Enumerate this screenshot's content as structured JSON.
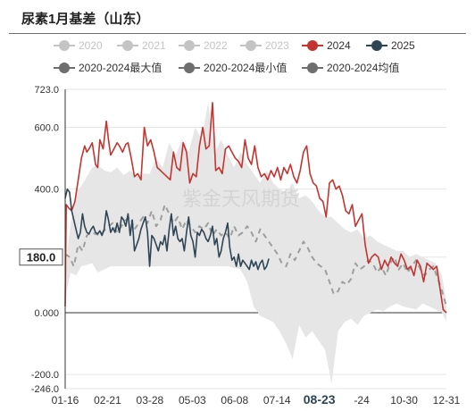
{
  "title": "尿素1月基差（山东）",
  "watermark": "紫金天风期货",
  "legend": {
    "row1": [
      {
        "label": "2020",
        "color": "#c4c4c4",
        "active": false
      },
      {
        "label": "2021",
        "color": "#c4c4c4",
        "active": false
      },
      {
        "label": "2022",
        "color": "#c4c4c4",
        "active": false
      },
      {
        "label": "2023",
        "color": "#c4c4c4",
        "active": false
      },
      {
        "label": "2024",
        "color": "#c23531",
        "active": true
      },
      {
        "label": "2025",
        "color": "#2f4554",
        "active": true
      }
    ],
    "row2": [
      {
        "label": "2020-2024最大值",
        "color": "#6e6e6e",
        "active": true
      },
      {
        "label": "2020-2024最小值",
        "color": "#6e6e6e",
        "active": true
      },
      {
        "label": "2020-2024均值",
        "color": "#6e6e6e",
        "active": true
      }
    ]
  },
  "chart_data": {
    "type": "line",
    "title": "尿素1月基差（山东）",
    "x_labels": [
      "01-16",
      "02-21",
      "03-28",
      "05-03",
      "06-08",
      "07-14",
      "08-23",
      "09-24",
      "10-30",
      "12-31"
    ],
    "x_labels_display": [
      "01-16",
      "02-21",
      "03-28",
      "05-03",
      "06-08",
      "07-14",
      "08-23",
      "-24",
      "10-30",
      "12-31"
    ],
    "highlight_x_label": "08-23",
    "y_ticks": [
      723,
      600,
      400,
      180,
      0,
      -200,
      -246
    ],
    "y_tick_labels": [
      "723.0",
      "600.0",
      "400.0",
      "180.0",
      "0.000",
      "-200.0",
      "-246.0"
    ],
    "highlight_y": "180.0",
    "ylim": [
      -246,
      723
    ],
    "grid": true,
    "legend_position": "top",
    "band": {
      "name_max": "2020-2024最大值",
      "name_min": "2020-2024最小值",
      "color": "#e6e6e6",
      "x": [
        0,
        2,
        5,
        10,
        15,
        20,
        25,
        30,
        36,
        42,
        48,
        54,
        60,
        66,
        72,
        78,
        84,
        90,
        96,
        102,
        108,
        114,
        120,
        126,
        132,
        138,
        144,
        150,
        156,
        162,
        168,
        174,
        180,
        186,
        192,
        198,
        204,
        210,
        216,
        222,
        228,
        234,
        240,
        246,
        252,
        258,
        264,
        270,
        276,
        282,
        288,
        294,
        300,
        306,
        312,
        318,
        324,
        330,
        336,
        342,
        348,
        352
      ],
      "max": [
        60,
        200,
        290,
        390,
        410,
        440,
        470,
        480,
        460,
        455,
        470,
        445,
        460,
        440,
        450,
        450,
        500,
        470,
        550,
        510,
        560,
        520,
        600,
        560,
        680,
        520,
        560,
        510,
        470,
        520,
        480,
        450,
        420,
        460,
        420,
        400,
        390,
        420,
        370,
        380,
        360,
        330,
        310,
        310,
        290,
        270,
        260,
        270,
        240,
        250,
        230,
        220,
        210,
        200,
        200,
        180,
        190,
        180,
        170,
        160,
        120,
        30
      ],
      "min": [
        10,
        80,
        130,
        120,
        150,
        155,
        160,
        130,
        140,
        150,
        150,
        150,
        150,
        150,
        150,
        150,
        150,
        150,
        150,
        150,
        150,
        150,
        150,
        150,
        150,
        150,
        150,
        150,
        145,
        140,
        100,
        20,
        -10,
        -20,
        -30,
        -60,
        -100,
        -150,
        -40,
        -80,
        -60,
        -90,
        -120,
        -230,
        -60,
        -30,
        -20,
        -40,
        -10,
        0,
        10,
        5,
        20,
        30,
        20,
        15,
        10,
        30,
        20,
        10,
        0,
        -30
      ]
    },
    "series": [
      {
        "name": "2024",
        "color": "#c23531",
        "style": "solid",
        "x": [
          0,
          1,
          3,
          6,
          9,
          12,
          15,
          18,
          20,
          22,
          25,
          28,
          30,
          32,
          35,
          38,
          40,
          42,
          45,
          48,
          50,
          53,
          56,
          58,
          61,
          64,
          67,
          70,
          73,
          76,
          79,
          82,
          85,
          88,
          91,
          94,
          97,
          100,
          103,
          106,
          109,
          112,
          115,
          118,
          121,
          124,
          127,
          130,
          133,
          136,
          139,
          142,
          145,
          148,
          151,
          154,
          157,
          160,
          163,
          166,
          169,
          172,
          175,
          178,
          181,
          184,
          187,
          190,
          193,
          196,
          199,
          202,
          205,
          208,
          211,
          214,
          217,
          220,
          223,
          226,
          229,
          232,
          235,
          238,
          241,
          244,
          247,
          250,
          253,
          256,
          259,
          262,
          265,
          268,
          271,
          274,
          277,
          280,
          283,
          286,
          289,
          292,
          295,
          298,
          301,
          304,
          307,
          310,
          313,
          316,
          319,
          322,
          325,
          328,
          331,
          334,
          337,
          340,
          343,
          346,
          349,
          352
        ],
        "y": [
          20,
          350,
          340,
          330,
          360,
          430,
          500,
          540,
          520,
          530,
          550,
          480,
          470,
          560,
          530,
          620,
          560,
          510,
          530,
          550,
          540,
          520,
          545,
          550,
          500,
          440,
          450,
          430,
          600,
          540,
          560,
          520,
          470,
          460,
          450,
          440,
          430,
          520,
          470,
          460,
          550,
          520,
          420,
          450,
          440,
          540,
          600,
          530,
          540,
          680,
          460,
          470,
          450,
          530,
          540,
          520,
          500,
          490,
          470,
          560,
          500,
          480,
          540,
          470,
          440,
          450,
          430,
          460,
          440,
          470,
          430,
          470,
          450,
          480,
          440,
          420,
          460,
          520,
          540,
          450,
          420,
          410,
          370,
          360,
          310,
          420,
          430,
          400,
          410,
          380,
          330,
          320,
          350,
          280,
          300,
          320,
          220,
          160,
          180,
          190,
          180,
          140,
          170,
          150,
          180,
          160,
          150,
          190,
          170,
          140,
          150,
          120,
          170,
          150,
          100,
          160,
          150,
          140,
          150,
          80,
          10,
          0
        ]
      },
      {
        "name": "2025",
        "color": "#2f4554",
        "style": "solid",
        "x": [
          0,
          2,
          4,
          6,
          8,
          10,
          12,
          14,
          16,
          18,
          20,
          22,
          24,
          26,
          28,
          30,
          32,
          34,
          36,
          38,
          40,
          42,
          44,
          46,
          48,
          50,
          52,
          54,
          56,
          58,
          60,
          62,
          64,
          66,
          68,
          70,
          72,
          74,
          76,
          78,
          80,
          82,
          84,
          86,
          88,
          90,
          92,
          94,
          96,
          98,
          100,
          102,
          104,
          106,
          108,
          110,
          112,
          114,
          116,
          118,
          120,
          122,
          124,
          126,
          128,
          130,
          132,
          134,
          136,
          138,
          140,
          142,
          144,
          146,
          148,
          150,
          152,
          154,
          156,
          158,
          160,
          162,
          164,
          166,
          168,
          170,
          172,
          174,
          176,
          178,
          180,
          182,
          184,
          186,
          188
        ],
        "y": [
          370,
          400,
          390,
          330,
          300,
          270,
          240,
          260,
          320,
          280,
          260,
          255,
          270,
          280,
          260,
          255,
          265,
          250,
          270,
          330,
          300,
          260,
          275,
          260,
          290,
          260,
          310,
          300,
          280,
          320,
          250,
          300,
          200,
          220,
          240,
          270,
          290,
          310,
          260,
          150,
          250,
          240,
          220,
          200,
          230,
          220,
          250,
          200,
          270,
          320,
          250,
          280,
          240,
          230,
          240,
          200,
          260,
          310,
          250,
          230,
          180,
          260,
          250,
          270,
          260,
          240,
          230,
          250,
          280,
          220,
          240,
          180,
          200,
          240,
          260,
          290,
          210,
          170,
          180,
          150,
          190,
          150,
          170,
          160,
          150,
          140,
          170,
          150,
          165,
          140,
          160,
          170,
          140,
          150,
          175
        ]
      },
      {
        "name": "2020-2024均值",
        "color": "#9e9e9e",
        "style": "dashed",
        "x": [
          0,
          4,
          8,
          12,
          16,
          20,
          24,
          28,
          32,
          36,
          40,
          44,
          48,
          52,
          56,
          60,
          64,
          68,
          72,
          76,
          80,
          84,
          88,
          92,
          96,
          100,
          104,
          108,
          112,
          116,
          120,
          124,
          128,
          132,
          136,
          140,
          144,
          148,
          152,
          156,
          160,
          164,
          168,
          172,
          176,
          180,
          184,
          188,
          192,
          196,
          200,
          204,
          208,
          212,
          216,
          220,
          224,
          228,
          232,
          236,
          240,
          244,
          248,
          252,
          256,
          260,
          264,
          268,
          272,
          276,
          280,
          284,
          288,
          292,
          296,
          300,
          304,
          308,
          312,
          316,
          320,
          324,
          328,
          332,
          336,
          340,
          344,
          348,
          352
        ],
        "y": [
          190,
          180,
          150,
          220,
          200,
          250,
          260,
          255,
          250,
          265,
          280,
          290,
          260,
          280,
          300,
          310,
          270,
          290,
          310,
          290,
          330,
          280,
          300,
          350,
          320,
          290,
          310,
          270,
          300,
          280,
          260,
          280,
          270,
          290,
          250,
          270,
          250,
          260,
          240,
          280,
          250,
          260,
          280,
          260,
          230,
          270,
          250,
          230,
          210,
          190,
          160,
          150,
          190,
          170,
          200,
          230,
          210,
          180,
          160,
          150,
          140,
          100,
          60,
          70,
          100,
          90,
          110,
          160,
          140,
          150,
          170,
          160,
          130,
          150,
          120,
          160,
          180,
          140,
          160,
          130,
          150,
          170,
          140,
          120,
          140,
          150,
          110,
          70,
          20
        ]
      }
    ]
  }
}
